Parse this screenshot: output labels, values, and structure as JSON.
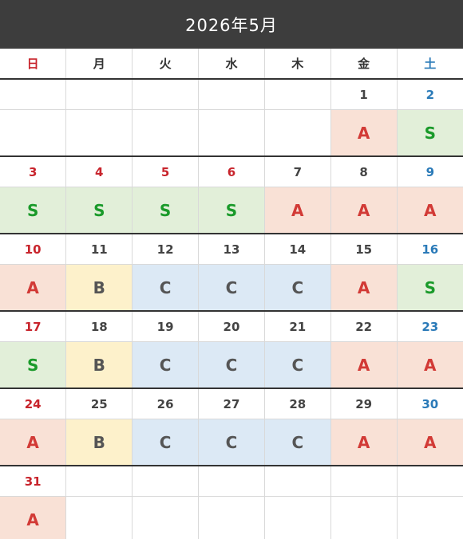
{
  "calendar": {
    "title": "2026年5月",
    "weekdays": [
      "日",
      "月",
      "火",
      "水",
      "木",
      "金",
      "土"
    ],
    "weeks": [
      {
        "days": [
          "",
          "",
          "",
          "",
          "",
          "1",
          "2"
        ],
        "status": [
          "",
          "",
          "",
          "",
          "",
          "A",
          "S"
        ]
      },
      {
        "days": [
          "3",
          "4",
          "5",
          "6",
          "7",
          "8",
          "9"
        ],
        "status": [
          "S",
          "S",
          "S",
          "S",
          "A",
          "A",
          "A"
        ]
      },
      {
        "days": [
          "10",
          "11",
          "12",
          "13",
          "14",
          "15",
          "16"
        ],
        "status": [
          "A",
          "B",
          "C",
          "C",
          "C",
          "A",
          "S"
        ]
      },
      {
        "days": [
          "17",
          "18",
          "19",
          "20",
          "21",
          "22",
          "23"
        ],
        "status": [
          "S",
          "B",
          "C",
          "C",
          "C",
          "A",
          "A"
        ]
      },
      {
        "days": [
          "24",
          "25",
          "26",
          "27",
          "28",
          "29",
          "30"
        ],
        "status": [
          "A",
          "B",
          "C",
          "C",
          "C",
          "A",
          "A"
        ]
      },
      {
        "days": [
          "31",
          "",
          "",
          "",
          "",
          "",
          ""
        ],
        "status": [
          "A",
          "",
          "",
          "",
          "",
          "",
          ""
        ]
      }
    ],
    "holiday_days": [
      "3",
      "4",
      "5",
      "6"
    ],
    "colors": {
      "header_bg": "#3d3d3d",
      "sunday": "#c8242c",
      "saturday": "#2a7ab8",
      "status_A_bg": "#f9e1d6",
      "status_S_bg": "#e2efd9",
      "status_B_bg": "#fdf1cb",
      "status_C_bg": "#dce9f5"
    }
  }
}
